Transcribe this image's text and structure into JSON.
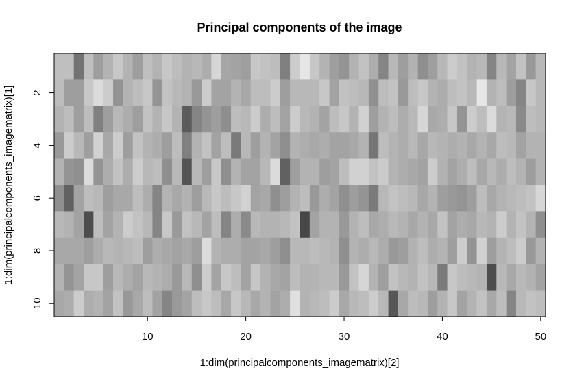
{
  "chart_data": {
    "type": "heatmap",
    "title": "Principal components of the image",
    "xlabel": "1:dim(principalcomponents_imagematrix)[2]",
    "ylabel": "1:dim(principalcomponents_imagematrix)[1]",
    "x_ticks": [
      10,
      20,
      30,
      40,
      50
    ],
    "y_ticks": [
      2,
      4,
      6,
      8,
      10
    ],
    "xlim": [
      0.5,
      50.5
    ],
    "ylim": [
      10.5,
      0.5
    ],
    "colormap": "grayscale",
    "grid": false,
    "rows": 10,
    "cols": 50,
    "values": [
      [
        0.75,
        0.75,
        0.45,
        0.75,
        0.62,
        0.7,
        0.78,
        0.7,
        0.62,
        0.75,
        0.7,
        0.78,
        0.74,
        0.7,
        0.72,
        0.68,
        0.84,
        0.65,
        0.64,
        0.62,
        0.78,
        0.76,
        0.74,
        0.5,
        0.8,
        0.9,
        0.78,
        0.7,
        0.62,
        0.58,
        0.7,
        0.76,
        0.68,
        0.52,
        0.72,
        0.62,
        0.7,
        0.56,
        0.62,
        0.72,
        0.8,
        0.76,
        0.7,
        0.72,
        0.52,
        0.72,
        0.64,
        0.76,
        0.6,
        0.72
      ],
      [
        0.74,
        0.62,
        0.62,
        0.78,
        0.86,
        0.8,
        0.58,
        0.7,
        0.74,
        0.78,
        0.58,
        0.76,
        0.72,
        0.7,
        0.6,
        0.8,
        0.64,
        0.64,
        0.7,
        0.66,
        0.74,
        0.74,
        0.8,
        0.62,
        0.72,
        0.72,
        0.72,
        0.78,
        0.64,
        0.76,
        0.74,
        0.72,
        0.56,
        0.74,
        0.76,
        0.6,
        0.74,
        0.78,
        0.7,
        0.68,
        0.74,
        0.76,
        0.72,
        0.9,
        0.7,
        0.74,
        0.62,
        0.52,
        0.78,
        0.72
      ],
      [
        0.7,
        0.74,
        0.62,
        0.74,
        0.5,
        0.62,
        0.72,
        0.68,
        0.62,
        0.76,
        0.7,
        0.78,
        0.7,
        0.36,
        0.52,
        0.58,
        0.62,
        0.56,
        0.74,
        0.72,
        0.8,
        0.68,
        0.74,
        0.64,
        0.8,
        0.72,
        0.7,
        0.64,
        0.74,
        0.78,
        0.7,
        0.82,
        0.62,
        0.7,
        0.74,
        0.68,
        0.72,
        0.84,
        0.66,
        0.68,
        0.78,
        0.58,
        0.8,
        0.74,
        0.86,
        0.7,
        0.72,
        0.54,
        0.74,
        0.72
      ],
      [
        0.6,
        0.8,
        0.72,
        0.62,
        0.82,
        0.66,
        0.8,
        0.62,
        0.76,
        0.7,
        0.68,
        0.62,
        0.74,
        0.5,
        0.7,
        0.76,
        0.64,
        0.74,
        0.48,
        0.72,
        0.62,
        0.7,
        0.64,
        0.56,
        0.7,
        0.68,
        0.66,
        0.68,
        0.64,
        0.64,
        0.66,
        0.7,
        0.46,
        0.74,
        0.7,
        0.68,
        0.72,
        0.66,
        0.72,
        0.7,
        0.68,
        0.7,
        0.66,
        0.7,
        0.66,
        0.74,
        0.72,
        0.64,
        0.7,
        0.7
      ],
      [
        0.7,
        0.58,
        0.56,
        0.86,
        0.58,
        0.68,
        0.76,
        0.68,
        0.8,
        0.72,
        0.74,
        0.56,
        0.72,
        0.33,
        0.72,
        0.62,
        0.78,
        0.56,
        0.7,
        0.64,
        0.64,
        0.72,
        0.86,
        0.38,
        0.62,
        0.7,
        0.7,
        0.62,
        0.64,
        0.74,
        0.82,
        0.82,
        0.76,
        0.8,
        0.7,
        0.68,
        0.66,
        0.64,
        0.8,
        0.7,
        0.64,
        0.68,
        0.74,
        0.66,
        0.72,
        0.68,
        0.74,
        0.7,
        0.62,
        0.7
      ],
      [
        0.56,
        0.38,
        0.64,
        0.74,
        0.72,
        0.62,
        0.66,
        0.66,
        0.74,
        0.68,
        0.52,
        0.7,
        0.66,
        0.7,
        0.62,
        0.72,
        0.78,
        0.74,
        0.78,
        0.82,
        0.64,
        0.66,
        0.56,
        0.62,
        0.7,
        0.74,
        0.6,
        0.68,
        0.64,
        0.56,
        0.62,
        0.58,
        0.48,
        0.72,
        0.76,
        0.74,
        0.72,
        0.66,
        0.7,
        0.62,
        0.6,
        0.58,
        0.62,
        0.74,
        0.66,
        0.7,
        0.72,
        0.74,
        0.76,
        0.84
      ],
      [
        0.72,
        0.7,
        0.64,
        0.3,
        0.74,
        0.64,
        0.7,
        0.8,
        0.76,
        0.72,
        0.52,
        0.78,
        0.6,
        0.76,
        0.72,
        0.64,
        0.74,
        0.52,
        0.68,
        0.54,
        0.72,
        0.7,
        0.7,
        0.72,
        0.76,
        0.28,
        0.64,
        0.7,
        0.7,
        0.6,
        0.7,
        0.74,
        0.66,
        0.68,
        0.72,
        0.7,
        0.66,
        0.7,
        0.66,
        0.76,
        0.64,
        0.68,
        0.66,
        0.72,
        0.7,
        0.8,
        0.7,
        0.76,
        0.7,
        0.56
      ],
      [
        0.66,
        0.66,
        0.66,
        0.62,
        0.68,
        0.72,
        0.7,
        0.72,
        0.74,
        0.62,
        0.68,
        0.66,
        0.64,
        0.66,
        0.62,
        0.86,
        0.7,
        0.68,
        0.68,
        0.64,
        0.64,
        0.66,
        0.62,
        0.56,
        0.72,
        0.72,
        0.74,
        0.72,
        0.7,
        0.56,
        0.7,
        0.68,
        0.72,
        0.68,
        0.6,
        0.62,
        0.7,
        0.74,
        0.68,
        0.7,
        0.62,
        0.8,
        0.58,
        0.82,
        0.62,
        0.7,
        0.74,
        0.8,
        0.6,
        0.7
      ],
      [
        0.7,
        0.58,
        0.64,
        0.78,
        0.78,
        0.62,
        0.72,
        0.68,
        0.64,
        0.72,
        0.7,
        0.68,
        0.6,
        0.72,
        0.56,
        0.8,
        0.64,
        0.78,
        0.74,
        0.64,
        0.78,
        0.7,
        0.66,
        0.64,
        0.74,
        0.7,
        0.7,
        0.72,
        0.72,
        0.6,
        0.76,
        0.84,
        0.7,
        0.62,
        0.76,
        0.72,
        0.7,
        0.76,
        0.72,
        0.48,
        0.78,
        0.74,
        0.72,
        0.7,
        0.3,
        0.72,
        0.66,
        0.72,
        0.7,
        0.64
      ],
      [
        0.66,
        0.68,
        0.8,
        0.68,
        0.7,
        0.64,
        0.76,
        0.6,
        0.66,
        0.74,
        0.64,
        0.52,
        0.6,
        0.64,
        0.74,
        0.78,
        0.74,
        0.66,
        0.78,
        0.72,
        0.66,
        0.7,
        0.64,
        0.68,
        0.88,
        0.7,
        0.72,
        0.74,
        0.8,
        0.66,
        0.72,
        0.74,
        0.8,
        0.72,
        0.34,
        0.66,
        0.74,
        0.72,
        0.62,
        0.7,
        0.78,
        0.64,
        0.7,
        0.76,
        0.66,
        0.74,
        0.52,
        0.72,
        0.76,
        0.74
      ]
    ]
  }
}
